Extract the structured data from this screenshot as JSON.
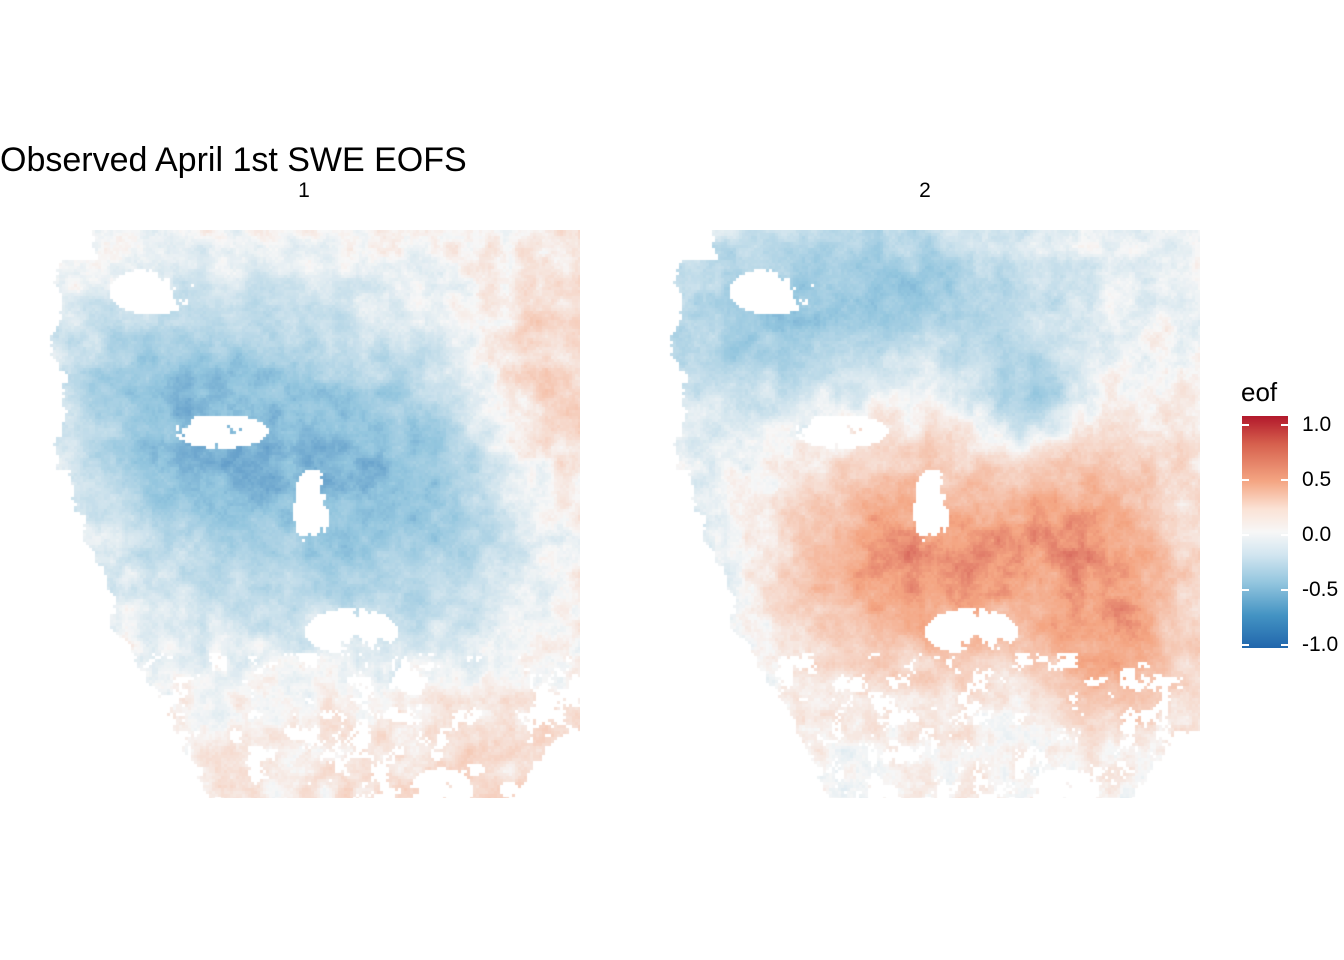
{
  "title": "Observed April 1st SWE EOFS",
  "chart_data": [
    {
      "type": "heatmap",
      "facet": "1",
      "description_of_values": "EOF loadings of April 1st snow water equivalent mapped over the western United States; loadings are negative (blue, about -0.5 to -0.8) over the central mountain region and near zero to slightly positive (pale) along the eastern and southern edges.",
      "value_range": [
        -0.8,
        0.2
      ]
    },
    {
      "type": "heatmap",
      "facet": "2",
      "value_range": [
        -0.6,
        0.6
      ]
    }
  ],
  "legend": {
    "title": "eof",
    "ticks": [
      "1.0",
      "0.5",
      "0.0",
      "-0.5",
      "-1.0"
    ],
    "colors": [
      "#b2182b",
      "#f4a582",
      "#f7f7f7",
      "#92c5de",
      "#2166ac"
    ],
    "limits": [
      -1.0,
      1.0
    ]
  }
}
